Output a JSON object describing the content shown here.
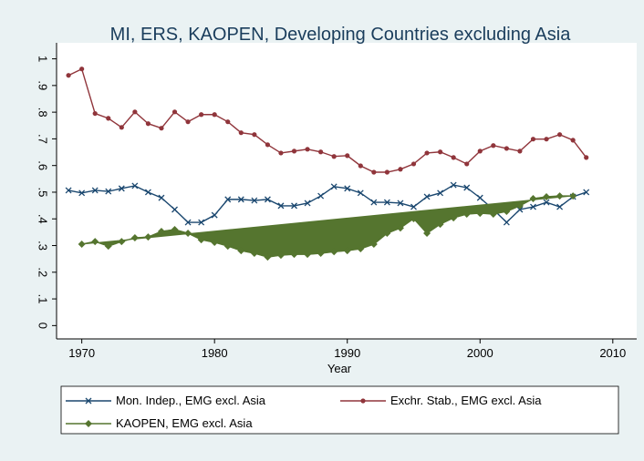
{
  "chart_data": {
    "type": "line",
    "title": "MI, ERS, KAOPEN, Developing Countries excluding Asia",
    "x_label": "Year",
    "x": [
      1969,
      1970,
      1971,
      1972,
      1973,
      1974,
      1975,
      1976,
      1977,
      1978,
      1979,
      1980,
      1981,
      1982,
      1983,
      1984,
      1985,
      1986,
      1987,
      1988,
      1989,
      1990,
      1991,
      1992,
      1993,
      1994,
      1995,
      1996,
      1997,
      1998,
      1999,
      2000,
      2001,
      2002,
      2003,
      2004,
      2005,
      2006,
      2007,
      2008
    ],
    "xlim": [
      1968.1,
      2011.8
    ],
    "xticks": [
      1970,
      1980,
      1990,
      2000,
      2010
    ],
    "ylim": [
      -0.05,
      1.06
    ],
    "yticks": [
      0,
      {
        "value": 0.1,
        "label": ".1"
      },
      {
        "value": 0.2,
        "label": ".2"
      },
      {
        "value": 0.3,
        "label": ".3"
      },
      {
        "value": 0.4,
        "label": ".4"
      },
      {
        "value": 0.5,
        "label": ".5"
      },
      {
        "value": 0.6,
        "label": ".6"
      },
      {
        "value": 0.7,
        "label": ".7"
      },
      {
        "value": 0.8,
        "label": ".8"
      },
      {
        "value": 0.9,
        "label": ".9"
      },
      1
    ],
    "grid": false,
    "series": [
      {
        "name": "Mon. Indep., EMG excl. Asia",
        "color": "#1a476f",
        "marker": "x",
        "values": [
          0.507,
          0.497,
          0.507,
          0.503,
          0.514,
          0.524,
          0.5,
          0.479,
          0.435,
          0.387,
          0.387,
          0.414,
          0.473,
          0.473,
          0.469,
          0.473,
          0.449,
          0.449,
          0.459,
          0.486,
          0.521,
          0.514,
          0.497,
          0.462,
          0.462,
          0.459,
          0.445,
          0.483,
          0.497,
          0.527,
          0.517,
          0.479,
          0.435,
          0.387,
          0.435,
          0.445,
          0.462,
          0.445,
          0.483,
          0.5
        ]
      },
      {
        "name": "Exchr. Stab., EMG excl. Asia",
        "color": "#90353b",
        "marker": "circle",
        "values": [
          0.938,
          0.962,
          0.795,
          0.777,
          0.743,
          0.801,
          0.757,
          0.74,
          0.801,
          0.764,
          0.791,
          0.791,
          0.764,
          0.723,
          0.716,
          0.678,
          0.647,
          0.654,
          0.661,
          0.651,
          0.634,
          0.637,
          0.599,
          0.575,
          0.575,
          0.586,
          0.606,
          0.647,
          0.651,
          0.63,
          0.606,
          0.654,
          0.675,
          0.664,
          0.654,
          0.699,
          0.699,
          0.716,
          0.695,
          0.63
        ]
      },
      {
        "name": "KAOPEN, EMG excl. Asia",
        "color": "#55752f",
        "marker": "diamond",
        "fill": true,
        "values": [
          null,
          0.305,
          0.315,
          0.298,
          0.315,
          0.329,
          0.332,
          0.353,
          0.36,
          0.346,
          0.322,
          0.312,
          0.298,
          0.281,
          0.271,
          0.257,
          0.264,
          0.267,
          0.267,
          0.271,
          0.277,
          0.281,
          0.288,
          0.305,
          0.346,
          0.366,
          0.401,
          0.346,
          0.38,
          0.404,
          0.418,
          0.421,
          0.418,
          0.428,
          0.449,
          0.476,
          0.483,
          0.486,
          0.486,
          null
        ]
      }
    ]
  }
}
